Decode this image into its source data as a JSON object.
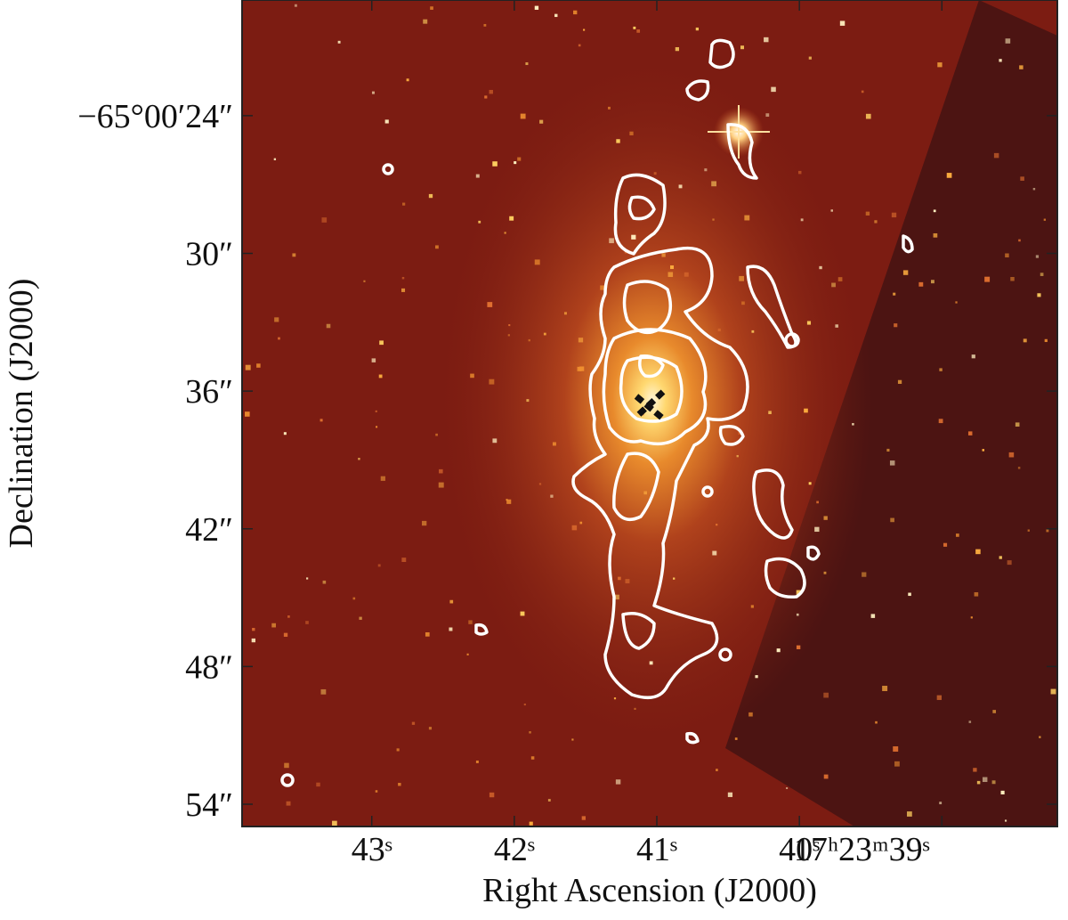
{
  "chart_data": {
    "type": "image",
    "xlabel": "Right Ascension (J2000)",
    "ylabel": "Declination (J2000)",
    "xlim": [
      43.91,
      38.19
    ],
    "ylim": [
      18.96,
      54.97
    ],
    "xticks": [
      {
        "value": 43,
        "label": "43ˢ"
      },
      {
        "value": 42,
        "label": "42ˢ"
      },
      {
        "value": 41,
        "label": "41ˢ"
      },
      {
        "value": 40,
        "label": "40ˢ"
      },
      {
        "value": 39,
        "label": "17ʰ23ᵐ39ˢ"
      }
    ],
    "yticks": [
      {
        "value": 24,
        "label": "−65°00′24″"
      },
      {
        "value": 30,
        "label": "30″"
      },
      {
        "value": 36,
        "label": "36″"
      },
      {
        "value": 42,
        "label": "42″"
      },
      {
        "value": 48,
        "label": "48″"
      },
      {
        "value": 54,
        "label": "54″"
      }
    ]
  }
}
